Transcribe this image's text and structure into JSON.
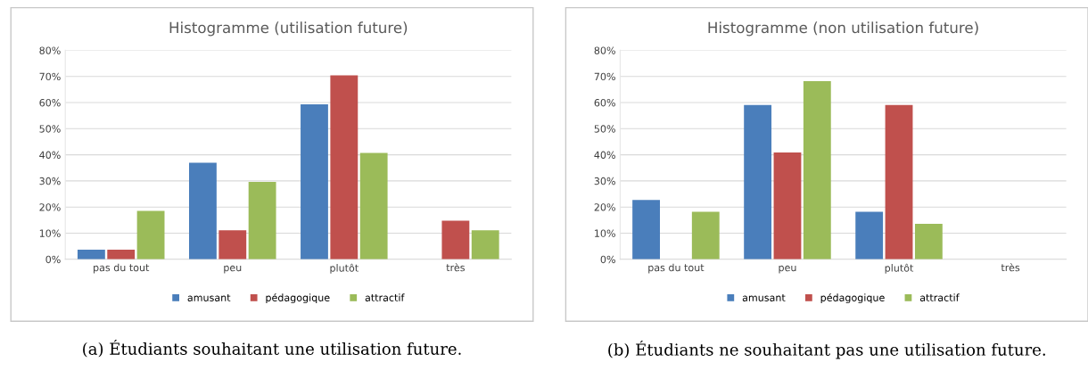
{
  "chart_data": [
    {
      "type": "bar",
      "title": "Histogramme (utilisation future)",
      "categories": [
        "pas du tout",
        "peu",
        "plutôt",
        "très"
      ],
      "series": [
        {
          "name": "amusant",
          "color": "#4a7ebb",
          "values": [
            3.7,
            37,
            59.3,
            0
          ]
        },
        {
          "name": "pédagogique",
          "color": "#c0504d",
          "values": [
            3.7,
            11.1,
            70.4,
            14.8
          ]
        },
        {
          "name": "attractif",
          "color": "#9bbb59",
          "values": [
            18.5,
            29.6,
            40.7,
            11.1
          ]
        }
      ],
      "ylim": [
        0,
        80
      ],
      "yticks": [
        {
          "value": 0,
          "label": "0%"
        },
        {
          "value": 10,
          "label": "10%"
        },
        {
          "value": 20,
          "label": "20%"
        },
        {
          "value": 30,
          "label": "30%"
        },
        {
          "value": 40,
          "label": "40%"
        },
        {
          "value": 50,
          "label": "50%"
        },
        {
          "value": 60,
          "label": "60%"
        },
        {
          "value": 70,
          "label": "70%"
        },
        {
          "value": 80,
          "label": "80%"
        }
      ],
      "grid": "y",
      "legend": "bottom",
      "annotations": [
        "(a) Étudiants souhaitant une utilisation future."
      ]
    },
    {
      "type": "bar",
      "title": "Histogramme (non utilisation future)",
      "categories": [
        "pas du tout",
        "peu",
        "plutôt",
        "très"
      ],
      "series": [
        {
          "name": "amusant",
          "color": "#4a7ebb",
          "values": [
            22.7,
            59.1,
            18.2,
            0
          ]
        },
        {
          "name": "pédagogique",
          "color": "#c0504d",
          "values": [
            0,
            40.9,
            59.1,
            0
          ]
        },
        {
          "name": "attractif",
          "color": "#9bbb59",
          "values": [
            18.2,
            68.2,
            13.6,
            0
          ]
        }
      ],
      "ylim": [
        0,
        80
      ],
      "yticks": [
        {
          "value": 0,
          "label": "0%"
        },
        {
          "value": 10,
          "label": "10%"
        },
        {
          "value": 20,
          "label": "20%"
        },
        {
          "value": 30,
          "label": "30%"
        },
        {
          "value": 40,
          "label": "40%"
        },
        {
          "value": 50,
          "label": "50%"
        },
        {
          "value": 60,
          "label": "60%"
        },
        {
          "value": 70,
          "label": "70%"
        },
        {
          "value": 80,
          "label": "80%"
        }
      ],
      "grid": "y",
      "legend": "bottom",
      "annotations": [
        "(b) Étudiants ne souhaitant pas une utilisation future."
      ]
    }
  ]
}
